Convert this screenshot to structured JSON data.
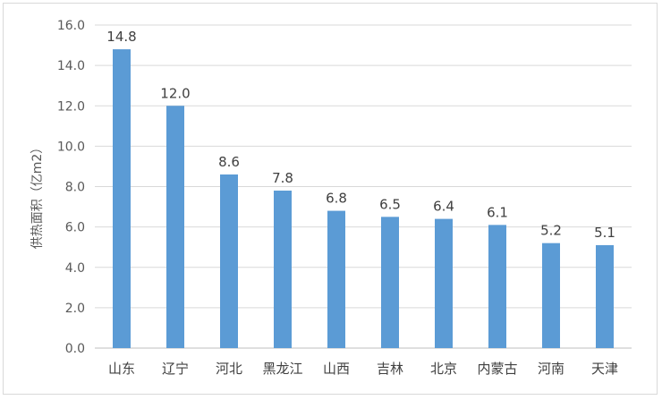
{
  "chart_data": {
    "type": "bar",
    "title": "",
    "xlabel": "",
    "ylabel": "供热面积（亿m2）",
    "categories": [
      "山东",
      "辽宁",
      "河北",
      "黑龙江",
      "山西",
      "吉林",
      "北京",
      "内蒙古",
      "河南",
      "天津"
    ],
    "values": [
      14.8,
      12.0,
      8.6,
      7.8,
      6.8,
      6.5,
      6.4,
      6.1,
      5.2,
      5.1
    ],
    "data_labels": [
      "14.8",
      "12.0",
      "8.6",
      "7.8",
      "6.8",
      "6.5",
      "6.4",
      "6.1",
      "5.2",
      "5.1"
    ],
    "ylim": [
      0,
      16
    ],
    "yticks": [
      "0.0",
      "2.0",
      "4.0",
      "6.0",
      "8.0",
      "10.0",
      "12.0",
      "14.0",
      "16.0"
    ],
    "grid": true,
    "legend": "none",
    "bar_color": "#5b9bd5"
  }
}
